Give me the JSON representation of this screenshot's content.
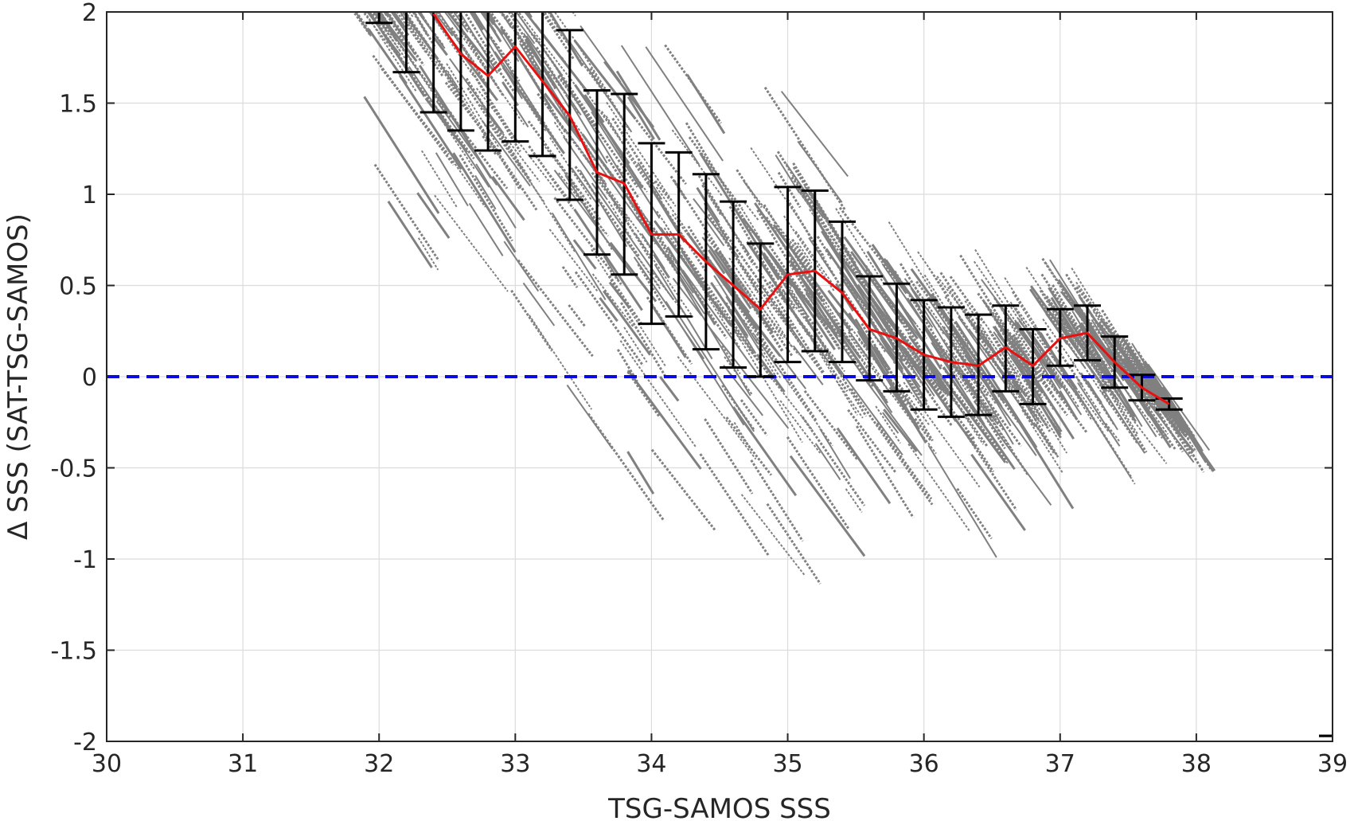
{
  "chart_data": {
    "type": "scatter",
    "title": "",
    "xlabel": "TSG-SAMOS SSS",
    "ylabel": "Δ SSS (SAT-TSG-SAMOS)",
    "xlim": [
      30,
      39
    ],
    "ylim": [
      -2,
      2
    ],
    "xticks": [
      30,
      31,
      32,
      33,
      34,
      35,
      36,
      37,
      38,
      39
    ],
    "yticks": [
      2,
      1.5,
      1,
      0.5,
      0,
      -0.5,
      -1,
      -1.5,
      -2
    ],
    "grid": true,
    "zero_line": {
      "y": 0,
      "color": "#0a0ae0",
      "style": "dashed"
    },
    "scatter_color": "#808080",
    "mean_line_color": "#e8110f",
    "errorbar_color": "#000000",
    "binned_stats": [
      {
        "x": 32.0,
        "mean": 2.05,
        "lower": 1.94,
        "upper": 2.16
      },
      {
        "x": 32.2,
        "mean": 2.1,
        "lower": 1.67,
        "upper": 2.5
      },
      {
        "x": 32.4,
        "mean": 1.99,
        "lower": 1.45,
        "upper": 2.5
      },
      {
        "x": 32.6,
        "mean": 1.77,
        "lower": 1.35,
        "upper": 2.2
      },
      {
        "x": 32.8,
        "mean": 1.65,
        "lower": 1.24,
        "upper": 2.07
      },
      {
        "x": 33.0,
        "mean": 1.81,
        "lower": 1.29,
        "upper": 2.32
      },
      {
        "x": 33.2,
        "mean": 1.62,
        "lower": 1.21,
        "upper": 2.03
      },
      {
        "x": 33.4,
        "mean": 1.43,
        "lower": 0.97,
        "upper": 1.9
      },
      {
        "x": 33.6,
        "mean": 1.12,
        "lower": 0.67,
        "upper": 1.57
      },
      {
        "x": 33.8,
        "mean": 1.06,
        "lower": 0.56,
        "upper": 1.55
      },
      {
        "x": 34.0,
        "mean": 0.78,
        "lower": 0.29,
        "upper": 1.28
      },
      {
        "x": 34.2,
        "mean": 0.78,
        "lower": 0.33,
        "upper": 1.23
      },
      {
        "x": 34.4,
        "mean": 0.63,
        "lower": 0.15,
        "upper": 1.11
      },
      {
        "x": 34.6,
        "mean": 0.5,
        "lower": 0.05,
        "upper": 0.96
      },
      {
        "x": 34.8,
        "mean": 0.37,
        "lower": 0.0,
        "upper": 0.73
      },
      {
        "x": 35.0,
        "mean": 0.56,
        "lower": 0.08,
        "upper": 1.04
      },
      {
        "x": 35.2,
        "mean": 0.58,
        "lower": 0.14,
        "upper": 1.02
      },
      {
        "x": 35.4,
        "mean": 0.46,
        "lower": 0.08,
        "upper": 0.85
      },
      {
        "x": 35.6,
        "mean": 0.26,
        "lower": -0.02,
        "upper": 0.55
      },
      {
        "x": 35.8,
        "mean": 0.21,
        "lower": -0.08,
        "upper": 0.51
      },
      {
        "x": 36.0,
        "mean": 0.12,
        "lower": -0.18,
        "upper": 0.42
      },
      {
        "x": 36.2,
        "mean": 0.08,
        "lower": -0.22,
        "upper": 0.38
      },
      {
        "x": 36.4,
        "mean": 0.06,
        "lower": -0.21,
        "upper": 0.34
      },
      {
        "x": 36.6,
        "mean": 0.16,
        "lower": -0.08,
        "upper": 0.39
      },
      {
        "x": 36.8,
        "mean": 0.06,
        "lower": -0.15,
        "upper": 0.26
      },
      {
        "x": 37.0,
        "mean": 0.21,
        "lower": 0.06,
        "upper": 0.37
      },
      {
        "x": 37.2,
        "mean": 0.24,
        "lower": 0.09,
        "upper": 0.39
      },
      {
        "x": 37.4,
        "mean": 0.08,
        "lower": -0.06,
        "upper": 0.22
      },
      {
        "x": 37.6,
        "mean": -0.06,
        "lower": -0.13,
        "upper": 0.01
      },
      {
        "x": 37.8,
        "mean": -0.15,
        "lower": -0.18,
        "upper": -0.12
      },
      {
        "x": 39.0,
        "mean": -1.97,
        "lower": -1.97,
        "upper": -1.97
      }
    ]
  }
}
